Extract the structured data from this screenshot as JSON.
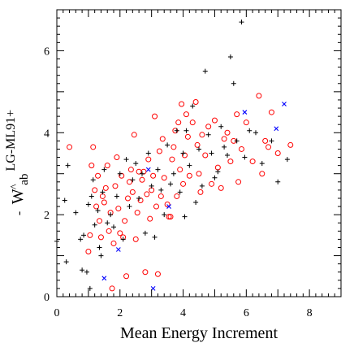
{
  "chart_data": {
    "type": "scatter",
    "title": "",
    "xlabel": "Mean Energy Increment",
    "ylabel": {
      "hat": "^",
      "main": "W",
      "subscript": "ab",
      "superscript": "LG-ML91+",
      "prefix": "-"
    },
    "xlim": [
      0,
      9
    ],
    "ylim": [
      0,
      7
    ],
    "xticks": [
      "0",
      "2",
      "4",
      "6",
      "8"
    ],
    "yticks": [
      "0",
      "2",
      "4",
      "6"
    ],
    "grid": false,
    "legend": "none",
    "series": [
      {
        "marker": "circle",
        "color": "#ff0000",
        "points": [
          [
            0.4,
            3.65
          ],
          [
            1.0,
            1.1
          ],
          [
            1.05,
            1.5
          ],
          [
            1.1,
            3.2
          ],
          [
            1.15,
            3.65
          ],
          [
            1.2,
            2.6
          ],
          [
            1.25,
            2.2
          ],
          [
            1.3,
            2.95
          ],
          [
            1.35,
            1.85
          ],
          [
            1.4,
            1.45
          ],
          [
            1.45,
            2.45
          ],
          [
            1.5,
            2.3
          ],
          [
            1.55,
            2.65
          ],
          [
            1.6,
            3.2
          ],
          [
            1.65,
            1.6
          ],
          [
            1.7,
            2.05
          ],
          [
            1.75,
            0.2
          ],
          [
            1.8,
            1.3
          ],
          [
            1.85,
            2.7
          ],
          [
            1.9,
            3.4
          ],
          [
            1.95,
            2.15
          ],
          [
            2.0,
            1.55
          ],
          [
            2.05,
            2.95
          ],
          [
            2.1,
            1.45
          ],
          [
            2.15,
            1.85
          ],
          [
            2.2,
            0.5
          ],
          [
            2.25,
            2.4
          ],
          [
            2.3,
            2.8
          ],
          [
            2.35,
            3.1
          ],
          [
            2.4,
            2.55
          ],
          [
            2.45,
            3.95
          ],
          [
            2.5,
            1.4
          ],
          [
            2.55,
            2.05
          ],
          [
            2.6,
            3.05
          ],
          [
            2.65,
            2.35
          ],
          [
            2.7,
            2.85
          ],
          [
            2.75,
            3.05
          ],
          [
            2.8,
            0.6
          ],
          [
            2.85,
            2.5
          ],
          [
            2.9,
            3.35
          ],
          [
            2.95,
            1.9
          ],
          [
            3.0,
            2.6
          ],
          [
            3.05,
            2.95
          ],
          [
            3.1,
            4.4
          ],
          [
            3.15,
            2.2
          ],
          [
            3.2,
            0.55
          ],
          [
            3.25,
            3.55
          ],
          [
            3.3,
            2.45
          ],
          [
            3.35,
            3.85
          ],
          [
            3.4,
            2.9
          ],
          [
            3.5,
            2.25
          ],
          [
            3.55,
            1.95
          ],
          [
            3.6,
            1.95
          ],
          [
            3.65,
            3.35
          ],
          [
            3.7,
            3.65
          ],
          [
            3.75,
            4.05
          ],
          [
            3.8,
            2.45
          ],
          [
            3.85,
            4.25
          ],
          [
            3.9,
            3.1
          ],
          [
            3.95,
            4.7
          ],
          [
            4.0,
            2.75
          ],
          [
            4.05,
            3.45
          ],
          [
            4.1,
            4.45
          ],
          [
            4.15,
            3.9
          ],
          [
            4.2,
            2.95
          ],
          [
            4.3,
            4.25
          ],
          [
            4.4,
            4.75
          ],
          [
            4.45,
            3.7
          ],
          [
            4.5,
            3.0
          ],
          [
            4.55,
            2.55
          ],
          [
            4.6,
            3.95
          ],
          [
            4.7,
            3.45
          ],
          [
            4.8,
            4.15
          ],
          [
            4.9,
            2.75
          ],
          [
            5.0,
            4.3
          ],
          [
            5.1,
            3.15
          ],
          [
            5.2,
            2.65
          ],
          [
            5.3,
            3.85
          ],
          [
            5.4,
            4.0
          ],
          [
            5.5,
            3.3
          ],
          [
            5.6,
            3.8
          ],
          [
            5.7,
            4.45
          ],
          [
            5.75,
            2.8
          ],
          [
            5.85,
            3.6
          ],
          [
            6.0,
            4.25
          ],
          [
            6.2,
            3.3
          ],
          [
            6.4,
            4.9
          ],
          [
            6.5,
            3.0
          ],
          [
            6.6,
            3.8
          ],
          [
            6.7,
            3.65
          ],
          [
            6.8,
            4.5
          ],
          [
            7.0,
            3.5
          ],
          [
            7.4,
            3.7
          ]
        ]
      },
      {
        "marker": "plus",
        "color": "#000000",
        "points": [
          [
            0.0,
            1.35
          ],
          [
            0.25,
            2.35
          ],
          [
            0.3,
            0.85
          ],
          [
            0.35,
            3.2
          ],
          [
            0.6,
            2.05
          ],
          [
            0.75,
            1.4
          ],
          [
            0.8,
            0.65
          ],
          [
            0.85,
            1.5
          ],
          [
            0.95,
            0.6
          ],
          [
            1.0,
            2.25
          ],
          [
            1.05,
            0.2
          ],
          [
            1.1,
            2.45
          ],
          [
            1.15,
            2.85
          ],
          [
            1.2,
            1.75
          ],
          [
            1.3,
            2.1
          ],
          [
            1.35,
            1.2
          ],
          [
            1.4,
            1.0
          ],
          [
            1.45,
            2.55
          ],
          [
            1.5,
            3.1
          ],
          [
            1.6,
            1.8
          ],
          [
            1.7,
            2.0
          ],
          [
            1.8,
            1.7
          ],
          [
            1.9,
            2.45
          ],
          [
            2.0,
            3.0
          ],
          [
            2.1,
            1.4
          ],
          [
            2.2,
            3.35
          ],
          [
            2.3,
            2.2
          ],
          [
            2.4,
            2.85
          ],
          [
            2.5,
            3.25
          ],
          [
            2.6,
            2.4
          ],
          [
            2.7,
            3.0
          ],
          [
            2.8,
            1.55
          ],
          [
            2.9,
            3.5
          ],
          [
            3.0,
            2.7
          ],
          [
            3.1,
            1.45
          ],
          [
            3.2,
            3.1
          ],
          [
            3.3,
            2.6
          ],
          [
            3.4,
            2.0
          ],
          [
            3.5,
            3.7
          ],
          [
            3.6,
            2.75
          ],
          [
            3.7,
            3.0
          ],
          [
            3.8,
            4.05
          ],
          [
            3.9,
            2.55
          ],
          [
            4.0,
            3.5
          ],
          [
            4.05,
            1.95
          ],
          [
            4.1,
            4.05
          ],
          [
            4.2,
            3.2
          ],
          [
            4.3,
            4.65
          ],
          [
            4.4,
            2.3
          ],
          [
            4.5,
            3.6
          ],
          [
            4.6,
            2.7
          ],
          [
            4.7,
            5.5
          ],
          [
            4.8,
            3.95
          ],
          [
            4.9,
            3.5
          ],
          [
            5.0,
            2.9
          ],
          [
            5.1,
            3.05
          ],
          [
            5.2,
            4.15
          ],
          [
            5.3,
            3.65
          ],
          [
            5.4,
            3.45
          ],
          [
            5.5,
            5.85
          ],
          [
            5.6,
            5.2
          ],
          [
            5.7,
            3.8
          ],
          [
            5.85,
            6.7
          ],
          [
            5.95,
            3.4
          ],
          [
            6.1,
            4.05
          ],
          [
            6.3,
            4.0
          ],
          [
            6.5,
            3.25
          ],
          [
            6.8,
            3.8
          ],
          [
            7.0,
            2.8
          ],
          [
            7.3,
            3.35
          ]
        ]
      },
      {
        "marker": "cross",
        "color": "#0000ff",
        "points": [
          [
            1.5,
            0.45
          ],
          [
            1.95,
            1.15
          ],
          [
            2.9,
            3.1
          ],
          [
            3.05,
            0.2
          ],
          [
            3.55,
            2.2
          ],
          [
            5.95,
            4.5
          ],
          [
            6.95,
            4.1
          ],
          [
            7.2,
            4.7
          ]
        ]
      }
    ]
  }
}
